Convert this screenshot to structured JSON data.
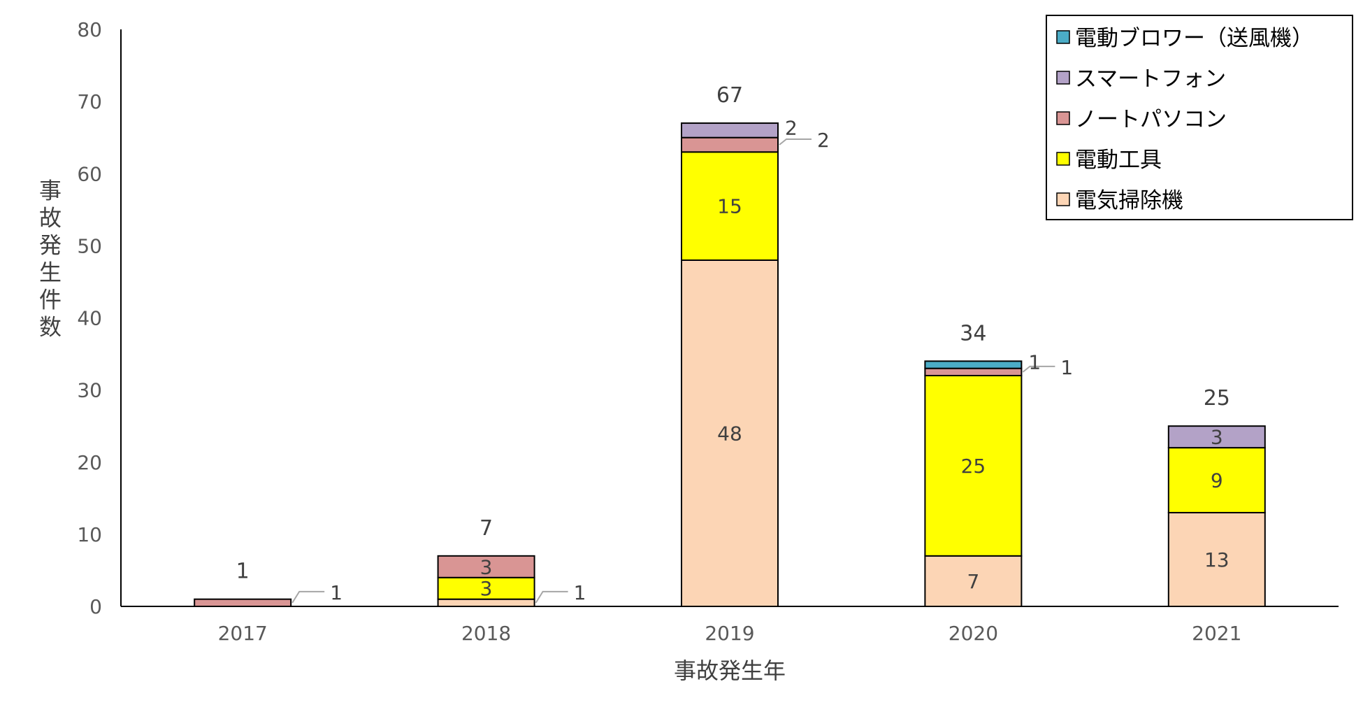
{
  "chart_data": {
    "type": "bar",
    "stacked": true,
    "categories": [
      "2017",
      "2018",
      "2019",
      "2020",
      "2021"
    ],
    "series": [
      {
        "name": "電気掃除機",
        "color": "#FCD5B5",
        "values": [
          0,
          1,
          48,
          7,
          13
        ]
      },
      {
        "name": "電動工具",
        "color": "#FFFF00",
        "values": [
          0,
          3,
          15,
          25,
          9
        ]
      },
      {
        "name": "ノートパソコン",
        "color": "#D99594",
        "values": [
          1,
          3,
          2,
          1,
          0
        ]
      },
      {
        "name": "スマートフォン",
        "color": "#B3A2C7",
        "values": [
          0,
          0,
          2,
          0,
          3
        ]
      },
      {
        "name": "電動ブロワー（送風機）",
        "color": "#4BACC6",
        "values": [
          0,
          0,
          0,
          1,
          0
        ]
      }
    ],
    "totals": [
      1,
      7,
      67,
      34,
      25
    ],
    "xlabel": "事故発生年",
    "ylabel": "事故発生件数",
    "ylim": [
      0,
      80
    ],
    "yticks": [
      0,
      10,
      20,
      30,
      40,
      50,
      60,
      70,
      80
    ],
    "grid": false,
    "legend_position": "top-right",
    "legend_order": [
      4,
      3,
      2,
      1,
      0
    ]
  }
}
